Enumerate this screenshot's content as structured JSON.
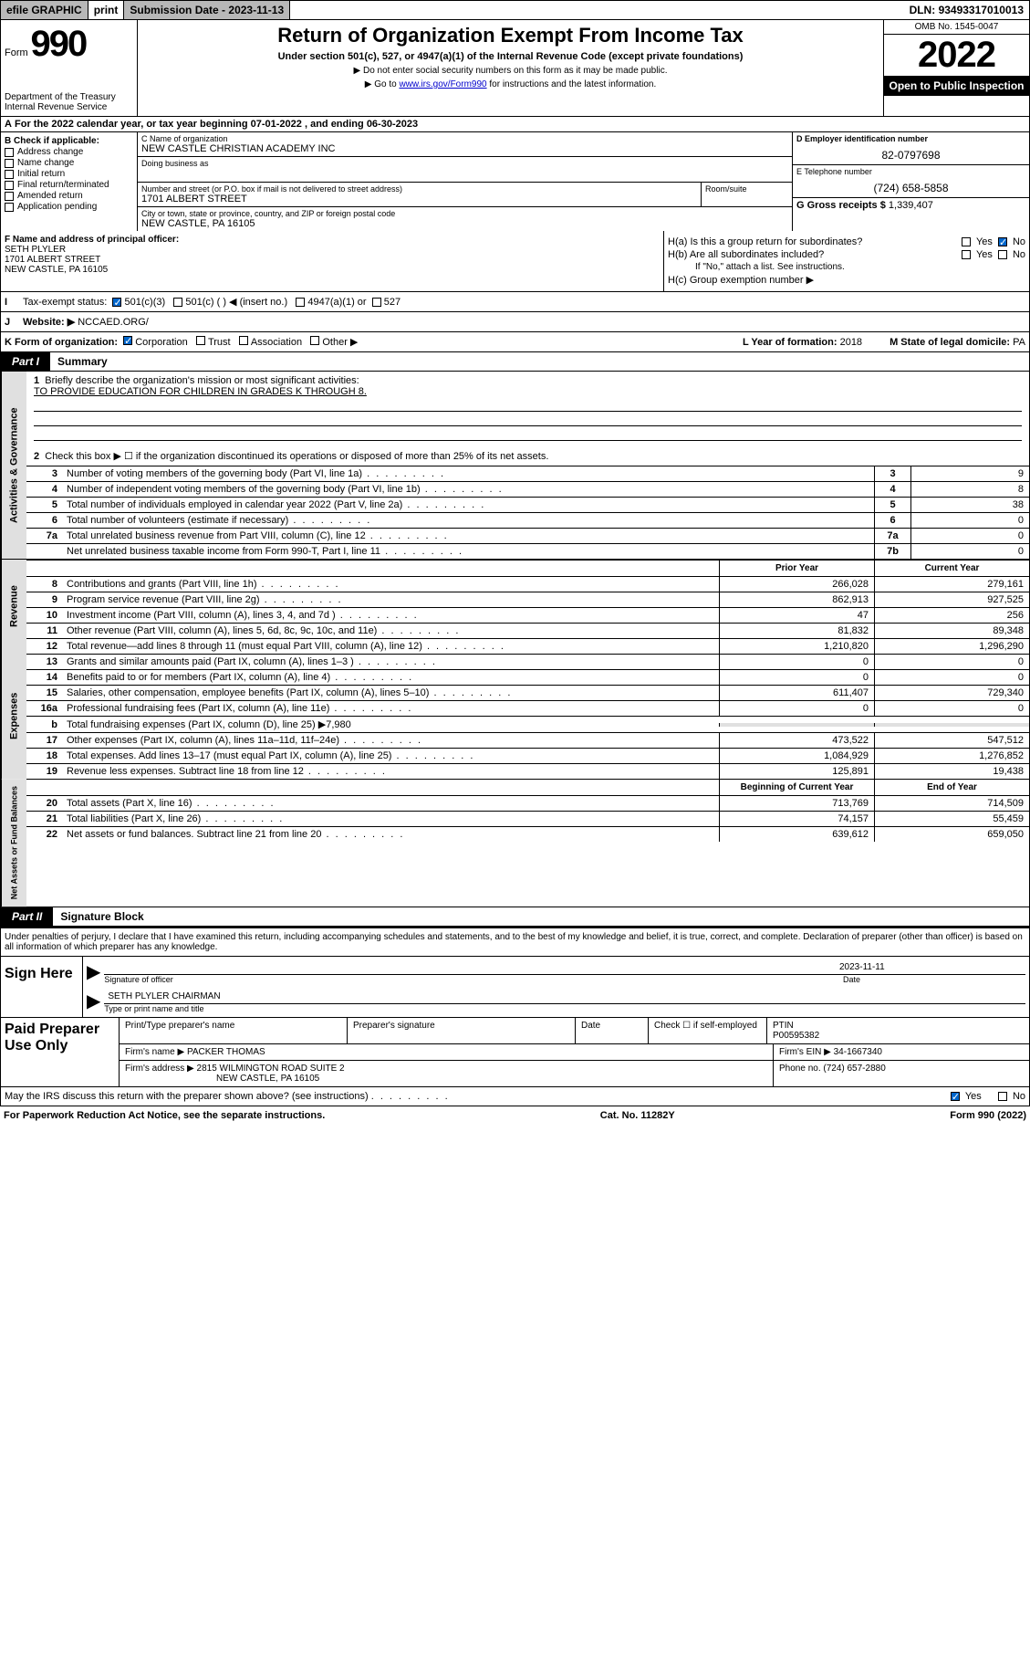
{
  "topbar": {
    "efile": "efile GRAPHIC",
    "print": "print",
    "subdate_label": "Submission Date - ",
    "subdate": "2023-11-13",
    "dln_label": "DLN: ",
    "dln": "93493317010013"
  },
  "header": {
    "form_label": "Form",
    "form_no": "990",
    "dept": "Department of the Treasury",
    "irs": "Internal Revenue Service",
    "title": "Return of Organization Exempt From Income Tax",
    "subtitle": "Under section 501(c), 527, or 4947(a)(1) of the Internal Revenue Code (except private foundations)",
    "note1": "▶ Do not enter social security numbers on this form as it may be made public.",
    "note2_pre": "▶ Go to ",
    "note2_link": "www.irs.gov/Form990",
    "note2_post": " for instructions and the latest information.",
    "omb": "OMB No. 1545-0047",
    "year": "2022",
    "open": "Open to Public Inspection"
  },
  "line_a": {
    "text": "For the 2022 calendar year, or tax year beginning ",
    "begin": "07-01-2022",
    "mid": " , and ending ",
    "end": "06-30-2023"
  },
  "box_b": {
    "title": "B Check if applicable:",
    "opts": [
      "Address change",
      "Name change",
      "Initial return",
      "Final return/terminated",
      "Amended return",
      "Application pending"
    ]
  },
  "box_c": {
    "name_label": "C Name of organization",
    "name": "NEW CASTLE CHRISTIAN ACADEMY INC",
    "dba_label": "Doing business as",
    "addr_label": "Number and street (or P.O. box if mail is not delivered to street address)",
    "addr": "1701 ALBERT STREET",
    "room_label": "Room/suite",
    "city_label": "City or town, state or province, country, and ZIP or foreign postal code",
    "city": "NEW CASTLE, PA  16105"
  },
  "box_d": {
    "label": "D Employer identification number",
    "val": "82-0797698"
  },
  "box_e": {
    "label": "E Telephone number",
    "val": "(724) 658-5858"
  },
  "box_g": {
    "label": "G Gross receipts $ ",
    "val": "1,339,407"
  },
  "box_f": {
    "label": "F Name and address of principal officer:",
    "name": "SETH PLYLER",
    "addr1": "1701 ALBERT STREET",
    "addr2": "NEW CASTLE, PA  16105"
  },
  "box_h": {
    "a_label": "H(a)  Is this a group return for subordinates?",
    "b_label": "H(b)  Are all subordinates included?",
    "b_note": "If \"No,\" attach a list. See instructions.",
    "c_label": "H(c)  Group exemption number ▶",
    "yes": "Yes",
    "no": "No"
  },
  "row_i": {
    "label": "Tax-exempt status:",
    "opt1": "501(c)(3)",
    "opt2": "501(c) (  ) ◀ (insert no.)",
    "opt3": "4947(a)(1) or",
    "opt4": "527"
  },
  "row_j": {
    "label": "Website: ▶",
    "val": "NCCAED.ORG/"
  },
  "row_k": {
    "label": "K Form of organization:",
    "opts": [
      "Corporation",
      "Trust",
      "Association",
      "Other ▶"
    ],
    "l": "L Year of formation: ",
    "l_val": "2018",
    "m": "M State of legal domicile: ",
    "m_val": "PA"
  },
  "part1": {
    "tab": "Part I",
    "title": "Summary"
  },
  "mission": {
    "num": "1",
    "label": "Briefly describe the organization's mission or most significant activities:",
    "text": "TO PROVIDE EDUCATION FOR CHILDREN IN GRADES K THROUGH 8."
  },
  "line2": {
    "num": "2",
    "label": "Check this box ▶ ☐  if the organization discontinued its operations or disposed of more than 25% of its net assets."
  },
  "gov_rows": [
    {
      "n": "3",
      "label": "Number of voting members of the governing body (Part VI, line 1a)",
      "box": "3",
      "val": "9"
    },
    {
      "n": "4",
      "label": "Number of independent voting members of the governing body (Part VI, line 1b)",
      "box": "4",
      "val": "8"
    },
    {
      "n": "5",
      "label": "Total number of individuals employed in calendar year 2022 (Part V, line 2a)",
      "box": "5",
      "val": "38"
    },
    {
      "n": "6",
      "label": "Total number of volunteers (estimate if necessary)",
      "box": "6",
      "val": "0"
    },
    {
      "n": "7a",
      "label": "Total unrelated business revenue from Part VIII, column (C), line 12",
      "box": "7a",
      "val": "0"
    },
    {
      "n": "",
      "label": "Net unrelated business taxable income from Form 990-T, Part I, line 11",
      "box": "7b",
      "val": "0"
    }
  ],
  "col_headers": {
    "prior": "Prior Year",
    "current": "Current Year"
  },
  "rev_rows": [
    {
      "n": "8",
      "label": "Contributions and grants (Part VIII, line 1h)",
      "p": "266,028",
      "c": "279,161"
    },
    {
      "n": "9",
      "label": "Program service revenue (Part VIII, line 2g)",
      "p": "862,913",
      "c": "927,525"
    },
    {
      "n": "10",
      "label": "Investment income (Part VIII, column (A), lines 3, 4, and 7d )",
      "p": "47",
      "c": "256"
    },
    {
      "n": "11",
      "label": "Other revenue (Part VIII, column (A), lines 5, 6d, 8c, 9c, 10c, and 11e)",
      "p": "81,832",
      "c": "89,348"
    },
    {
      "n": "12",
      "label": "Total revenue—add lines 8 through 11 (must equal Part VIII, column (A), line 12)",
      "p": "1,210,820",
      "c": "1,296,290"
    }
  ],
  "exp_rows": [
    {
      "n": "13",
      "label": "Grants and similar amounts paid (Part IX, column (A), lines 1–3 )",
      "p": "0",
      "c": "0"
    },
    {
      "n": "14",
      "label": "Benefits paid to or for members (Part IX, column (A), line 4)",
      "p": "0",
      "c": "0"
    },
    {
      "n": "15",
      "label": "Salaries, other compensation, employee benefits (Part IX, column (A), lines 5–10)",
      "p": "611,407",
      "c": "729,340"
    },
    {
      "n": "16a",
      "label": "Professional fundraising fees (Part IX, column (A), line 11e)",
      "p": "0",
      "c": "0"
    }
  ],
  "line16b": {
    "n": "b",
    "label": "Total fundraising expenses (Part IX, column (D), line 25) ▶",
    "val": "7,980"
  },
  "exp_rows2": [
    {
      "n": "17",
      "label": "Other expenses (Part IX, column (A), lines 11a–11d, 11f–24e)",
      "p": "473,522",
      "c": "547,512"
    },
    {
      "n": "18",
      "label": "Total expenses. Add lines 13–17 (must equal Part IX, column (A), line 25)",
      "p": "1,084,929",
      "c": "1,276,852"
    },
    {
      "n": "19",
      "label": "Revenue less expenses. Subtract line 18 from line 12",
      "p": "125,891",
      "c": "19,438"
    }
  ],
  "na_headers": {
    "beg": "Beginning of Current Year",
    "end": "End of Year"
  },
  "na_rows": [
    {
      "n": "20",
      "label": "Total assets (Part X, line 16)",
      "p": "713,769",
      "c": "714,509"
    },
    {
      "n": "21",
      "label": "Total liabilities (Part X, line 26)",
      "p": "74,157",
      "c": "55,459"
    },
    {
      "n": "22",
      "label": "Net assets or fund balances. Subtract line 21 from line 20",
      "p": "639,612",
      "c": "659,050"
    }
  ],
  "vtabs": {
    "activities": "Activities & Governance",
    "revenue": "Revenue",
    "expenses": "Expenses",
    "netassets": "Net Assets or Fund Balances"
  },
  "part2": {
    "tab": "Part II",
    "title": "Signature Block"
  },
  "penalties": "Under penalties of perjury, I declare that I have examined this return, including accompanying schedules and statements, and to the best of my knowledge and belief, it is true, correct, and complete. Declaration of preparer (other than officer) is based on all information of which preparer has any knowledge.",
  "sign": {
    "here": "Sign Here",
    "sig_label": "Signature of officer",
    "date_label": "Date",
    "date": "2023-11-11",
    "name": "SETH PLYLER CHAIRMAN",
    "name_label": "Type or print name and title"
  },
  "prep": {
    "title": "Paid Preparer Use Only",
    "h1": "Print/Type preparer's name",
    "h2": "Preparer's signature",
    "h3": "Date",
    "h4_pre": "Check ☐ if self-employed",
    "h5": "PTIN",
    "ptin": "P00595382",
    "firm_label": "Firm's name    ▶",
    "firm": "PACKER THOMAS",
    "ein_label": "Firm's EIN ▶",
    "ein": "34-1667340",
    "addr_label": "Firm's address ▶",
    "addr1": "2815 WILMINGTON ROAD SUITE 2",
    "addr2": "NEW CASTLE, PA  16105",
    "phone_label": "Phone no. ",
    "phone": "(724) 657-2880"
  },
  "footer": {
    "discuss": "May the IRS discuss this return with the preparer shown above? (see instructions)",
    "yes": "Yes",
    "no": "No",
    "paperwork": "For Paperwork Reduction Act Notice, see the separate instructions.",
    "cat": "Cat. No. 11282Y",
    "formno": "Form 990 (2022)"
  }
}
